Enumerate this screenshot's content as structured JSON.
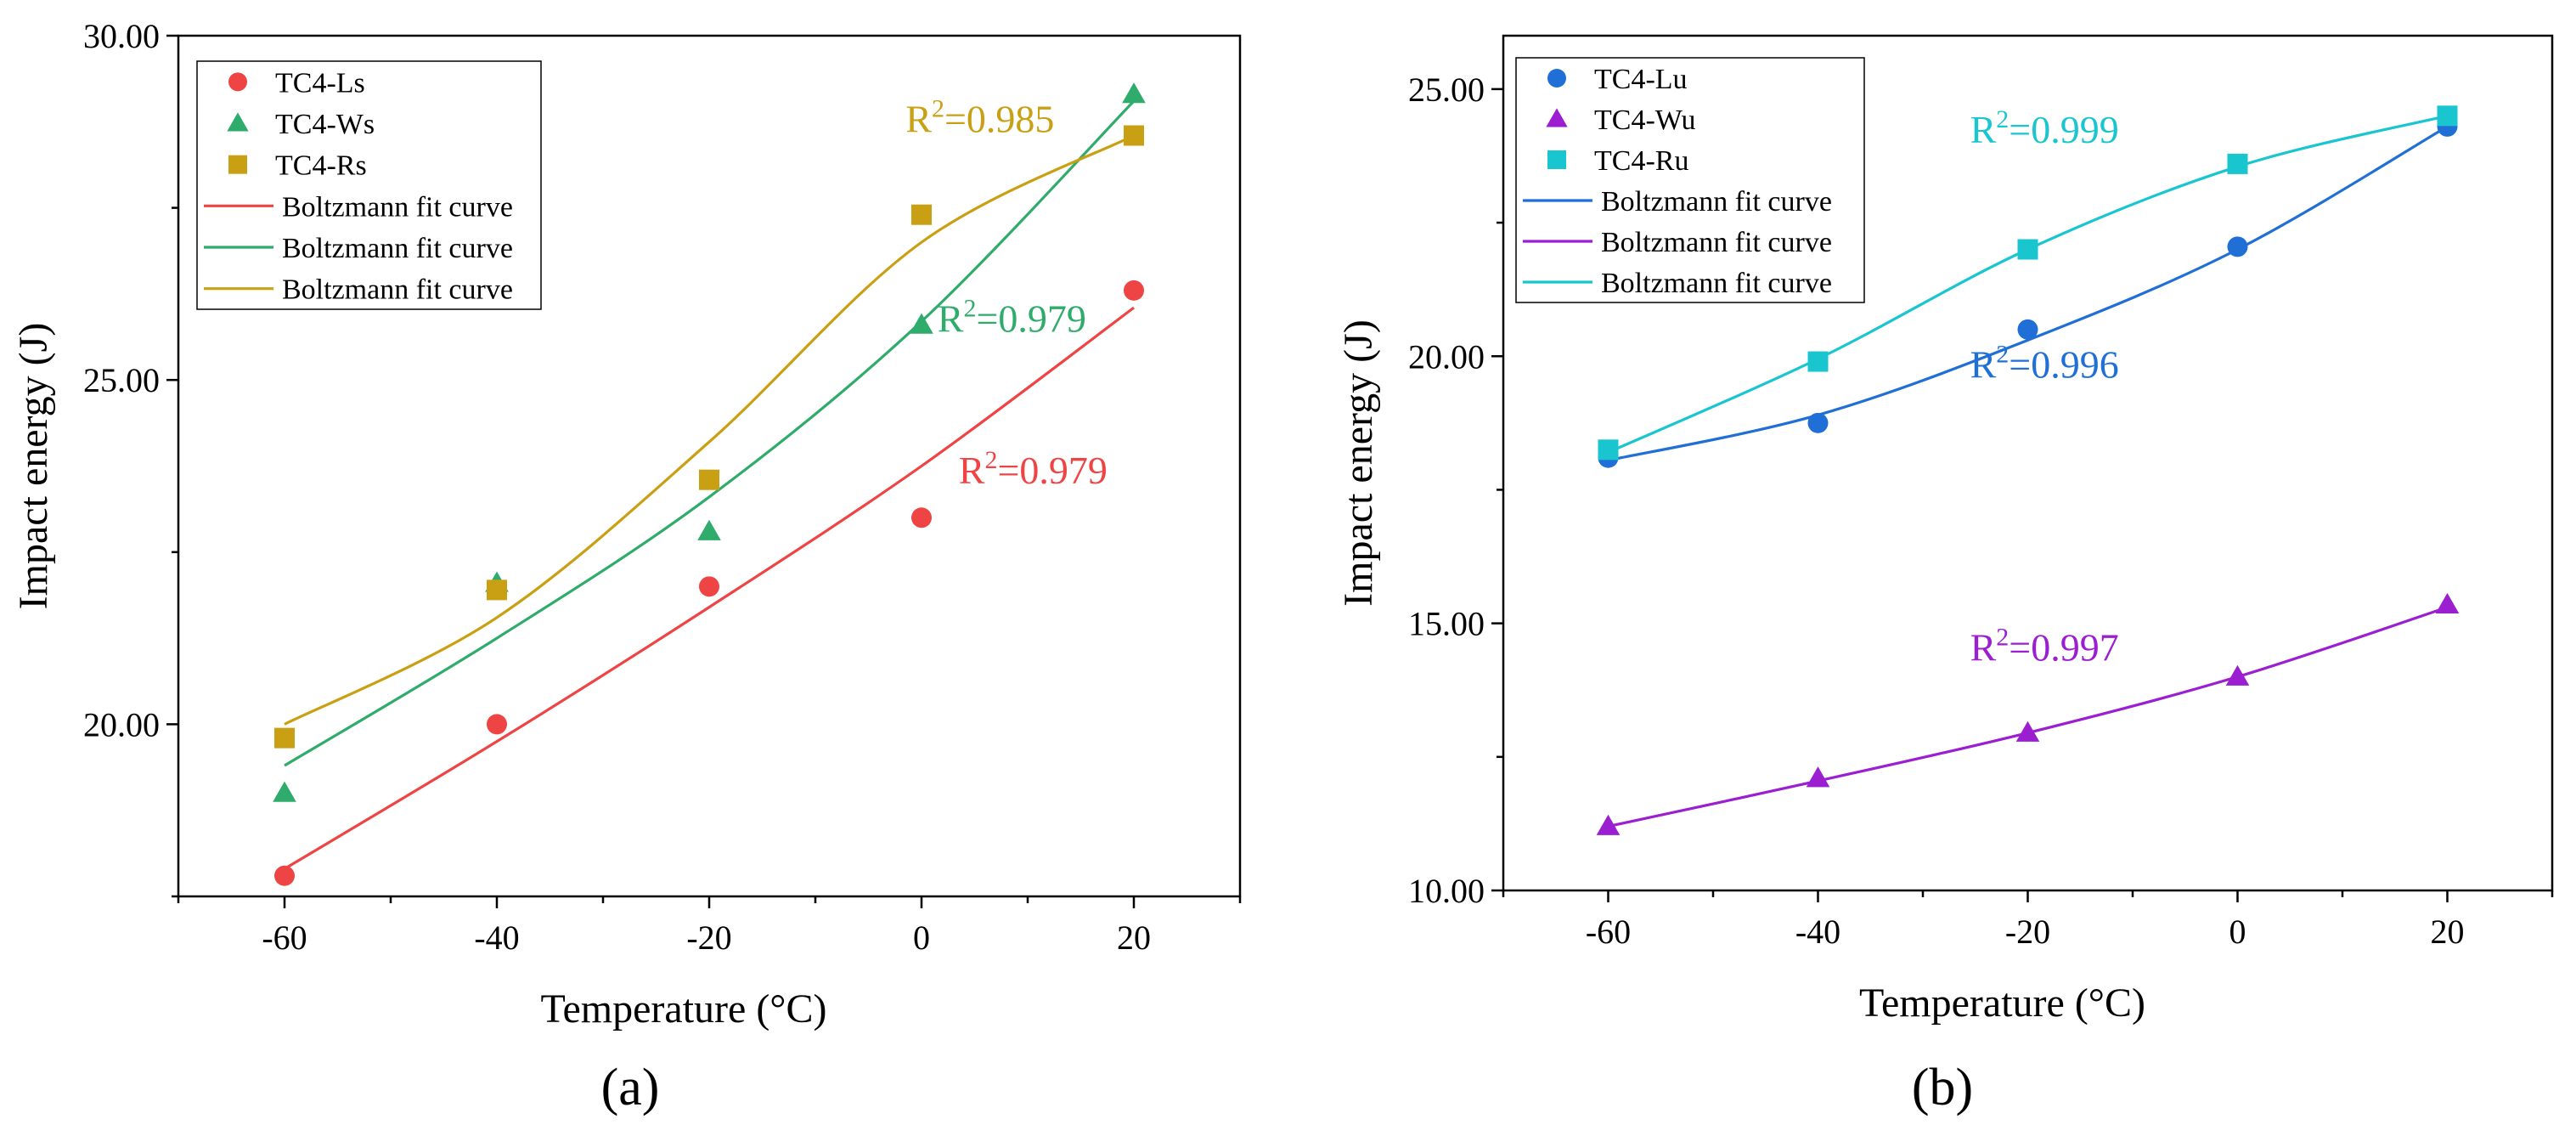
{
  "chart_data": [
    {
      "type": "scatter",
      "panel_label": "(a)",
      "xlabel": "Temperature (°C)",
      "ylabel": "Impact energy (J)",
      "xlim": [
        -70,
        30
      ],
      "ylim": [
        17.5,
        30
      ],
      "xticks": [
        -60,
        -40,
        -20,
        0,
        20
      ],
      "xtick_labels": [
        "-60",
        "-40",
        "-20",
        "0",
        "20"
      ],
      "yticks": [
        20,
        25,
        30
      ],
      "ytick_labels": [
        "20.00",
        "25.00",
        "30.00"
      ],
      "x": [
        -60,
        -40,
        -20,
        0,
        20
      ],
      "legend_position": "top-left",
      "series": [
        {
          "name": "TC4-Ls",
          "marker": "circle",
          "color": "#ef4444",
          "values": [
            17.8,
            20.0,
            22.0,
            23.0,
            26.3
          ],
          "fit": [
            17.9,
            19.75,
            21.7,
            23.75,
            26.05
          ]
        },
        {
          "name": "TC4-Ws",
          "marker": "triangle",
          "color": "#2fab6b",
          "values": [
            19.0,
            22.05,
            22.8,
            25.8,
            29.15
          ],
          "fit": [
            19.4,
            21.25,
            23.3,
            25.85,
            29.05
          ]
        },
        {
          "name": "TC4-Rs",
          "marker": "square",
          "color": "#c9a013",
          "values": [
            19.8,
            21.95,
            23.55,
            27.4,
            28.55
          ],
          "fit": [
            20.0,
            21.55,
            24.1,
            27.0,
            28.55
          ]
        }
      ],
      "fit_legend_labels": [
        "Boltzmann fit curve",
        "Boltzmann fit curve",
        "Boltzmann fit curve"
      ],
      "annotations": [
        {
          "text": "R",
          "sup": "2",
          "rest": "=0.985",
          "color": "#c9a013",
          "x": -1.5,
          "y": 28.6
        },
        {
          "text": "R",
          "sup": "2",
          "rest": "=0.979",
          "color": "#2fab6b",
          "x": 1.5,
          "y": 25.7
        },
        {
          "text": "R",
          "sup": "2",
          "rest": "=0.979",
          "color": "#ef4444",
          "x": 3.5,
          "y": 23.5
        }
      ]
    },
    {
      "type": "scatter",
      "panel_label": "(b)",
      "xlabel": "Temperature (°C)",
      "ylabel": "Impact energy (J)",
      "xlim": [
        -70,
        30
      ],
      "ylim": [
        10,
        26
      ],
      "xticks": [
        -60,
        -40,
        -20,
        0,
        20
      ],
      "xtick_labels": [
        "-60",
        "-40",
        "-20",
        "0",
        "20"
      ],
      "yticks": [
        10,
        15,
        20,
        25
      ],
      "ytick_labels": [
        "10.00",
        "15.00",
        "20.00",
        "25.00"
      ],
      "x": [
        -60,
        -40,
        -20,
        0,
        20
      ],
      "legend_position": "top-left",
      "series": [
        {
          "name": "TC4-Lu",
          "marker": "circle",
          "color": "#1f6fd6",
          "values": [
            18.1,
            18.75,
            20.5,
            22.05,
            24.3
          ],
          "fit": [
            18.05,
            18.9,
            20.3,
            22.0,
            24.3
          ]
        },
        {
          "name": "TC4-Wu",
          "marker": "triangle",
          "color": "#9b1fd1",
          "values": [
            11.2,
            12.1,
            12.95,
            14.0,
            15.35
          ],
          "fit": [
            11.2,
            12.05,
            12.95,
            14.0,
            15.3
          ]
        },
        {
          "name": "TC4-Ru",
          "marker": "square",
          "color": "#19c6d0",
          "values": [
            18.25,
            19.9,
            22.0,
            23.6,
            24.5
          ],
          "fit": [
            18.2,
            19.95,
            22.0,
            23.55,
            24.5
          ]
        }
      ],
      "fit_legend_labels": [
        "Boltzmann fit curve",
        "Boltzmann fit curve",
        "Boltzmann fit curve"
      ],
      "annotations": [
        {
          "text": "R",
          "sup": "2",
          "rest": "=0.999",
          "color": "#19c6d0",
          "x": -25.5,
          "y": 24.0
        },
        {
          "text": "R",
          "sup": "2",
          "rest": "=0.996",
          "color": "#1f6fd6",
          "x": -25.5,
          "y": 19.6
        },
        {
          "text": "R",
          "sup": "2",
          "rest": "=0.997",
          "color": "#9b1fd1",
          "x": -25.5,
          "y": 14.3
        }
      ]
    }
  ]
}
